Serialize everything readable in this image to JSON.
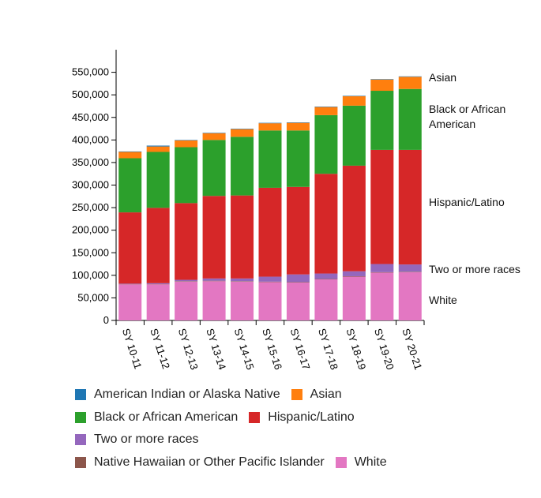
{
  "chart_data": {
    "type": "stacked-bar",
    "categories": [
      "SY 10-11",
      "SY 11-12",
      "SY 12-13",
      "SY 13-14",
      "SY 14-15",
      "SY 15-16",
      "SY 16-17",
      "SY 17-18",
      "SY 18-19",
      "SY 19-20",
      "SY 20-21"
    ],
    "series": [
      {
        "name": "American Indian or Alaska Native",
        "color": "#1f77b4",
        "values": [
          1000,
          2000,
          1000,
          1000,
          1000,
          1000,
          1000,
          1000,
          1000,
          1000,
          1000
        ]
      },
      {
        "name": "Asian",
        "color": "#ff7f0e",
        "values": [
          14000,
          12000,
          15000,
          15000,
          17000,
          16000,
          17000,
          18000,
          21000,
          25000,
          27000
        ]
      },
      {
        "name": "Black or African American",
        "color": "#2ca02c",
        "values": [
          120000,
          124000,
          124000,
          124000,
          130000,
          127000,
          125000,
          130000,
          133000,
          131000,
          135000
        ]
      },
      {
        "name": "Hispanic/Latino",
        "color": "#d62728",
        "values": [
          158000,
          167000,
          170000,
          183000,
          184000,
          197000,
          194000,
          221000,
          234000,
          253000,
          254000
        ]
      },
      {
        "name": "Two or more races",
        "color": "#9467bd",
        "values": [
          1000,
          2000,
          3000,
          5000,
          6000,
          11000,
          17000,
          12000,
          11000,
          18000,
          16000
        ]
      },
      {
        "name": "Native Hawaiian or Other Pacific Islander",
        "color": "#8c564b",
        "values": [
          500,
          500,
          1000,
          1000,
          1000,
          1000,
          1000,
          1000,
          1000,
          1000,
          1000
        ]
      },
      {
        "name": "White",
        "color": "#e377c2",
        "values": [
          80000,
          80000,
          86000,
          87000,
          86000,
          85000,
          84000,
          91000,
          97000,
          106000,
          107000
        ]
      }
    ],
    "ylim": [
      0,
      600000
    ],
    "yticks": [
      0,
      {
        "value": 50000,
        "label": "50,000"
      },
      {
        "value": 100000,
        "label": "100,000"
      },
      {
        "value": 150000,
        "label": "150,000"
      },
      {
        "value": 200000,
        "label": "200,000"
      },
      {
        "value": 250000,
        "label": "250,000"
      },
      {
        "value": 300000,
        "label": "300,000"
      },
      {
        "value": 350000,
        "label": "350,000"
      },
      {
        "value": 400000,
        "label": "400,000"
      },
      {
        "value": 450000,
        "label": "450,000"
      },
      {
        "value": 500000,
        "label": "500,000"
      },
      {
        "value": 550000,
        "label": "550,000"
      }
    ],
    "annotations": [
      "Asian",
      "Black or African American",
      "Hispanic/Latino",
      "Two or more races",
      "White"
    ]
  }
}
